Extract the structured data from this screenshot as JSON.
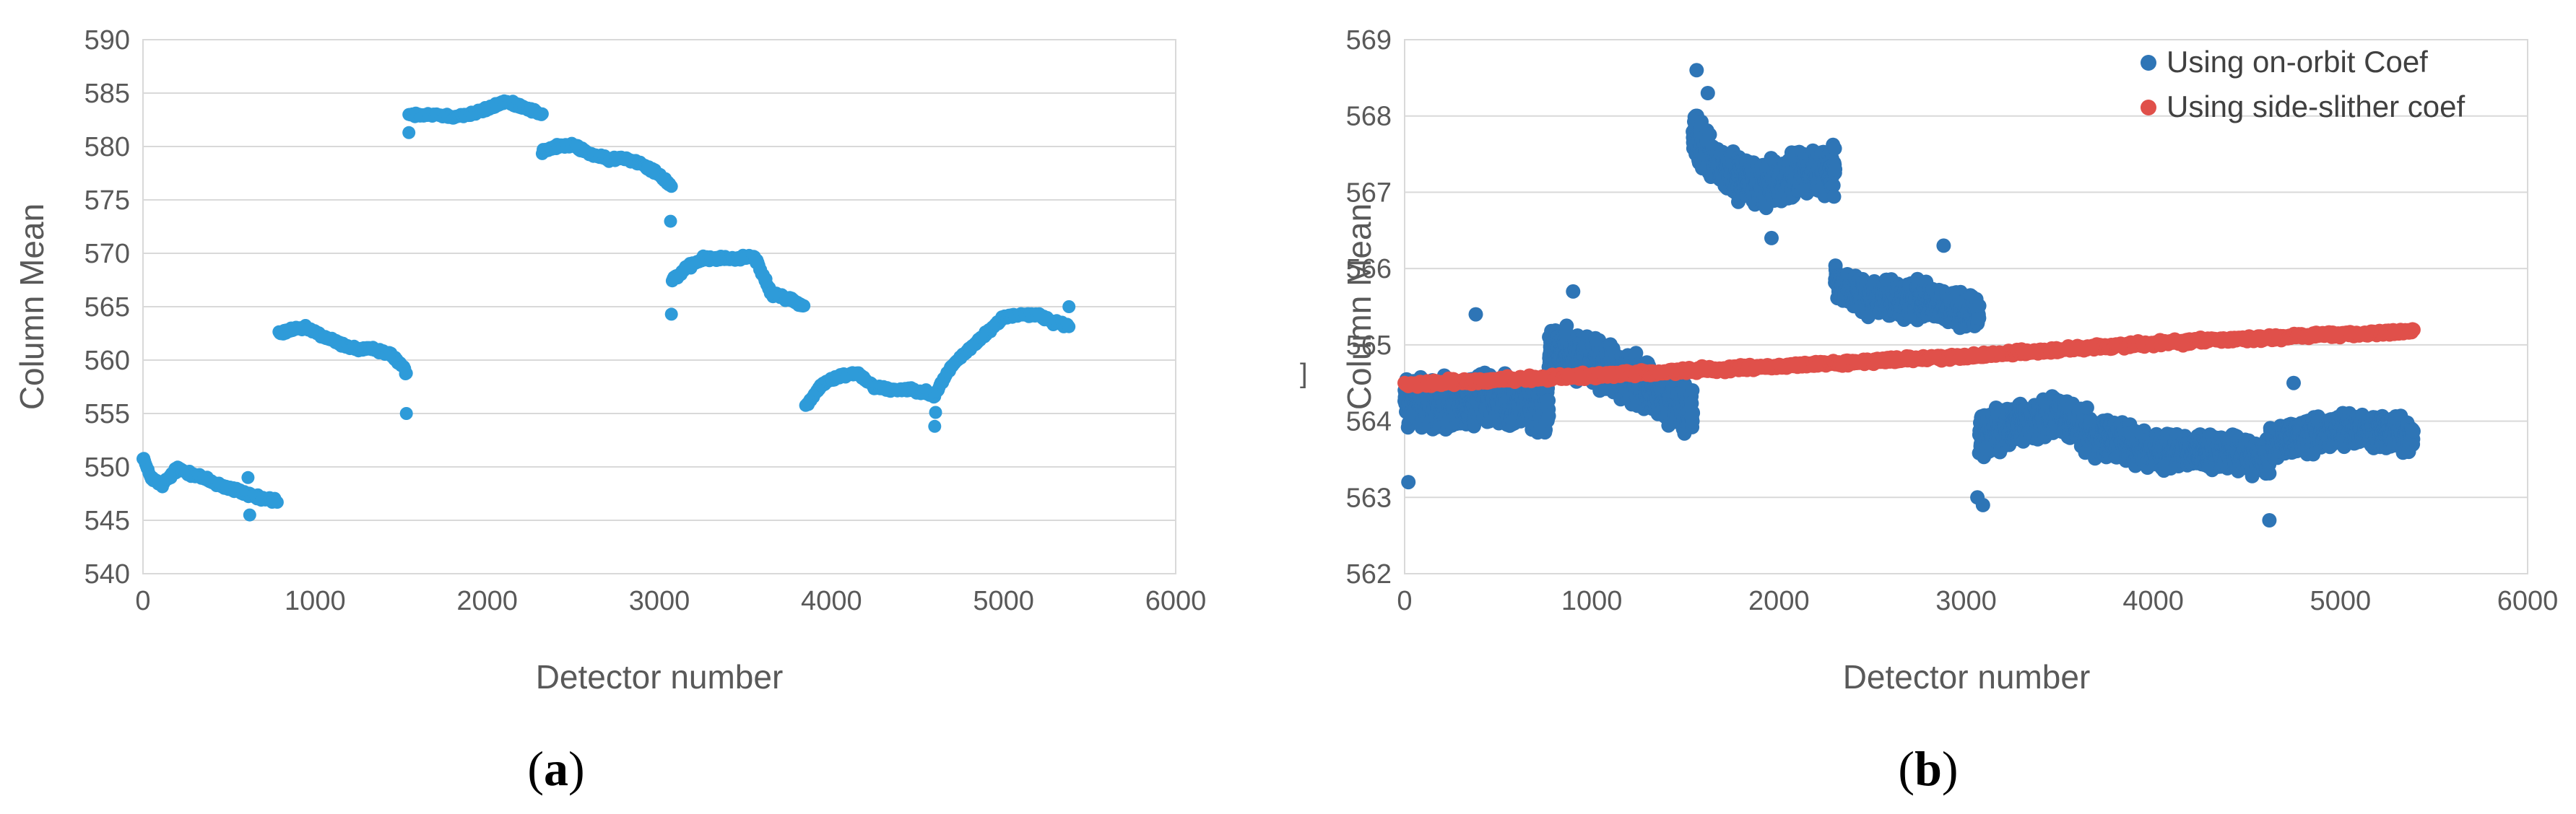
{
  "chart_data": [
    {
      "id": "a",
      "type": "scatter",
      "caption": {
        "open": "(",
        "letter": "a",
        "close": ")"
      },
      "xlabel": "Detector number",
      "ylabel": "Column Mean",
      "xlim": [
        0,
        6000
      ],
      "ylim": [
        540,
        590
      ],
      "xticks": [
        0,
        1000,
        2000,
        3000,
        4000,
        5000,
        6000
      ],
      "yticks": [
        540,
        545,
        550,
        555,
        560,
        565,
        570,
        575,
        580,
        585,
        590
      ],
      "grid": "horizontal",
      "legend": null,
      "series": [
        {
          "color": "#2E9BD9",
          "segments": [
            {
              "x0": 0,
              "x1": 780,
              "anchors": [
                [
                  0,
                  551
                ],
                [
                  30,
                  549.5
                ],
                [
                  60,
                  548.8
                ],
                [
                  110,
                  548.3
                ],
                [
                  200,
                  549.8
                ],
                [
                  300,
                  549.3
                ],
                [
                  400,
                  548.6
                ],
                [
                  500,
                  548
                ],
                [
                  600,
                  547.5
                ],
                [
                  700,
                  547
                ],
                [
                  780,
                  546.8
                ]
              ],
              "jitter": 0.4,
              "count": 160
            },
            {
              "x0": 790,
              "x1": 1530,
              "anchors": [
                [
                  790,
                  562.5
                ],
                [
                  850,
                  562.8
                ],
                [
                  950,
                  563
                ],
                [
                  1050,
                  562.2
                ],
                [
                  1150,
                  561.5
                ],
                [
                  1250,
                  561
                ],
                [
                  1350,
                  561
                ],
                [
                  1430,
                  560.6
                ],
                [
                  1500,
                  559.6
                ],
                [
                  1530,
                  558.8
                ]
              ],
              "jitter": 0.3,
              "count": 150
            },
            {
              "x0": 1545,
              "x1": 2320,
              "anchors": [
                [
                  1545,
                  583
                ],
                [
                  1700,
                  583
                ],
                [
                  1800,
                  582.8
                ],
                [
                  1900,
                  583
                ],
                [
                  2000,
                  583.5
                ],
                [
                  2100,
                  584.2
                ],
                [
                  2200,
                  583.8
                ],
                [
                  2320,
                  583
                ]
              ],
              "jitter": 0.3,
              "count": 155
            },
            {
              "x0": 2320,
              "x1": 3070,
              "anchors": [
                [
                  2320,
                  579.5
                ],
                [
                  2400,
                  580
                ],
                [
                  2500,
                  580.1
                ],
                [
                  2600,
                  579.3
                ],
                [
                  2700,
                  578.8
                ],
                [
                  2800,
                  578.9
                ],
                [
                  2900,
                  578.4
                ],
                [
                  3000,
                  577.4
                ],
                [
                  3070,
                  576.3
                ]
              ],
              "jitter": 0.3,
              "count": 150
            },
            {
              "x0": 3075,
              "x1": 3840,
              "anchors": [
                [
                  3075,
                  567.5
                ],
                [
                  3150,
                  568.5
                ],
                [
                  3250,
                  569.5
                ],
                [
                  3350,
                  569.5
                ],
                [
                  3450,
                  569.5
                ],
                [
                  3550,
                  569.8
                ],
                [
                  3650,
                  566.2
                ],
                [
                  3750,
                  565.8
                ],
                [
                  3840,
                  565
                ]
              ],
              "jitter": 0.35,
              "count": 150
            },
            {
              "x0": 3850,
              "x1": 4600,
              "anchors": [
                [
                  3850,
                  555.7
                ],
                [
                  3950,
                  557.8
                ],
                [
                  4050,
                  558.5
                ],
                [
                  4150,
                  558.8
                ],
                [
                  4250,
                  557.5
                ],
                [
                  4350,
                  557.2
                ],
                [
                  4450,
                  557.3
                ],
                [
                  4550,
                  557
                ],
                [
                  4600,
                  556.5
                ]
              ],
              "jitter": 0.3,
              "count": 150
            },
            {
              "x0": 4600,
              "x1": 5380,
              "anchors": [
                [
                  4600,
                  556.8
                ],
                [
                  4700,
                  559.5
                ],
                [
                  4800,
                  561
                ],
                [
                  4900,
                  562.5
                ],
                [
                  5000,
                  564
                ],
                [
                  5100,
                  564.3
                ],
                [
                  5200,
                  564.2
                ],
                [
                  5300,
                  563.5
                ],
                [
                  5380,
                  563.2
                ]
              ],
              "jitter": 0.3,
              "count": 155
            }
          ],
          "outliers": [
            [
              1545,
              581.3
            ],
            [
              1530,
              555
            ],
            [
              3065,
              573
            ],
            [
              3070,
              564.3
            ],
            [
              4600,
              553.8
            ],
            [
              4605,
              555.1
            ],
            [
              5380,
              565
            ],
            [
              620,
              545.5
            ],
            [
              610,
              549
            ]
          ]
        }
      ]
    },
    {
      "id": "b",
      "type": "scatter",
      "caption": {
        "open": "(",
        "letter": "b",
        "close": ")"
      },
      "xlabel": "Detector  number",
      "ylabel": "Column Mean",
      "xlim": [
        0,
        6000
      ],
      "ylim": [
        562,
        569
      ],
      "xticks": [
        0,
        1000,
        2000,
        3000,
        4000,
        5000,
        6000
      ],
      "yticks": [
        562,
        563,
        564,
        565,
        566,
        567,
        568,
        569
      ],
      "grid": "horizontal",
      "legend": "top-right",
      "series": [
        {
          "name": "Using on-orbit Coef",
          "color": "#2E75B6",
          "segments": [
            {
              "x0": 0,
              "x1": 770,
              "anchors": [
                [
                  0,
                  564.3
                ],
                [
                  200,
                  564.2
                ],
                [
                  400,
                  564.3
                ],
                [
                  600,
                  564.2
                ],
                [
                  770,
                  564.2
                ]
              ],
              "jitter": 0.45,
              "count": 800
            },
            {
              "x0": 770,
              "x1": 1540,
              "anchors": [
                [
                  770,
                  564.9
                ],
                [
                  1000,
                  564.8
                ],
                [
                  1200,
                  564.6
                ],
                [
                  1400,
                  564.3
                ],
                [
                  1540,
                  564.1
                ]
              ],
              "jitter": 0.42,
              "count": 800
            },
            {
              "x0": 1540,
              "x1": 2300,
              "anchors": [
                [
                  1540,
                  567.8
                ],
                [
                  1700,
                  567.3
                ],
                [
                  1900,
                  567.1
                ],
                [
                  2100,
                  567.2
                ],
                [
                  2300,
                  567.3
                ]
              ],
              "jitter": 0.38,
              "count": 750
            },
            {
              "x0": 2300,
              "x1": 3070,
              "anchors": [
                [
                  2300,
                  565.8
                ],
                [
                  2500,
                  565.6
                ],
                [
                  2700,
                  565.6
                ],
                [
                  2900,
                  565.5
                ],
                [
                  3070,
                  565.4
                ]
              ],
              "jitter": 0.3,
              "count": 750
            },
            {
              "x0": 3070,
              "x1": 3850,
              "anchors": [
                [
                  3070,
                  563.8
                ],
                [
                  3300,
                  564
                ],
                [
                  3500,
                  564.1
                ],
                [
                  3700,
                  563.8
                ],
                [
                  3850,
                  563.8
                ]
              ],
              "jitter": 0.35,
              "count": 750
            },
            {
              "x0": 3850,
              "x1": 4620,
              "anchors": [
                [
                  3850,
                  563.7
                ],
                [
                  4000,
                  563.6
                ],
                [
                  4200,
                  563.6
                ],
                [
                  4400,
                  563.6
                ],
                [
                  4620,
                  563.5
                ]
              ],
              "jitter": 0.3,
              "count": 750
            },
            {
              "x0": 4620,
              "x1": 5390,
              "anchors": [
                [
                  4620,
                  563.7
                ],
                [
                  4800,
                  563.8
                ],
                [
                  5000,
                  563.9
                ],
                [
                  5200,
                  563.9
                ],
                [
                  5390,
                  563.8
                ]
              ],
              "jitter": 0.3,
              "count": 750
            }
          ],
          "outliers": [
            [
              1560,
              568.6
            ],
            [
              1620,
              568.3
            ],
            [
              3090,
              562.9
            ],
            [
              3060,
              563
            ],
            [
              4620,
              562.7
            ],
            [
              20,
              563.2
            ],
            [
              380,
              565.4
            ],
            [
              900,
              565.7
            ],
            [
              1960,
              566.4
            ],
            [
              2880,
              566.3
            ],
            [
              4750,
              564.5
            ]
          ]
        },
        {
          "name": "Using side-slither coef",
          "color": "#E0504A",
          "segments": [
            {
              "x0": 0,
              "x1": 5390,
              "anchors": [
                [
                  0,
                  564.48
                ],
                [
                  1000,
                  564.6
                ],
                [
                  2000,
                  564.72
                ],
                [
                  3000,
                  564.85
                ],
                [
                  4000,
                  565.02
                ],
                [
                  5000,
                  565.14
                ],
                [
                  5390,
                  565.18
                ]
              ],
              "jitter": 0.05,
              "count": 1100
            }
          ],
          "outliers": []
        }
      ]
    }
  ],
  "stray_mark": "]"
}
